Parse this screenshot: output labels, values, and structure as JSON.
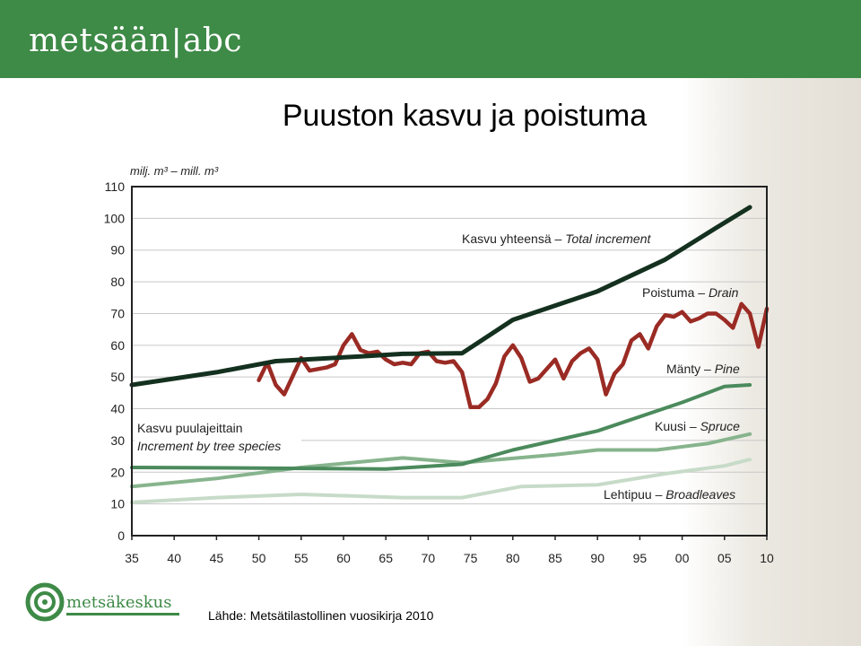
{
  "header": {
    "brand_left": "metsään",
    "brand_sep": "|",
    "brand_right": "abc"
  },
  "title": "Puuston kasvu ja poistuma",
  "source": "Lähde: Metsätilastollinen vuosikirja 2010",
  "footer_logo": {
    "text": "metsäkeskus"
  },
  "colors": {
    "header": "#3e8a47",
    "total_increment": "#14301f",
    "drain": "#9a2b24",
    "pine": "#4b8a5c",
    "spruce": "#87b48d",
    "broadleaves": "#c7dbc8",
    "species_label_box": "#ffffff"
  },
  "chart_data": {
    "type": "line",
    "ylabel": "milj. m³ – mill. m³",
    "ylim": [
      0,
      110
    ],
    "yticks": [
      0,
      10,
      20,
      30,
      40,
      50,
      60,
      70,
      80,
      90,
      100,
      110
    ],
    "xlim": [
      1935,
      2010
    ],
    "xticks": [
      1935,
      1940,
      1945,
      1950,
      1955,
      1960,
      1965,
      1970,
      1975,
      1980,
      1985,
      1990,
      1995,
      2000,
      2005,
      2010
    ],
    "xticklabels": [
      "35",
      "40",
      "45",
      "50",
      "55",
      "60",
      "65",
      "70",
      "75",
      "80",
      "85",
      "90",
      "95",
      "00",
      "05",
      "10"
    ],
    "grid": "horizontal",
    "annotations": [
      {
        "label": "Kasvu yhteensä – Total increment",
        "series": "total"
      },
      {
        "label": "Poistuma – Drain",
        "series": "drain"
      },
      {
        "label": "Mänty – Pine",
        "series": "pine"
      },
      {
        "label": "Kuusi – Spruce",
        "series": "spruce"
      },
      {
        "label": "Lehtipuu – Broadleaves",
        "series": "broadleaves"
      }
    ],
    "group_label": [
      "Kasvu puulajeittain",
      "Increment by tree species"
    ],
    "series": [
      {
        "id": "total",
        "name": "Kasvu yhteensä – Total increment",
        "x": [
          1935,
          1945,
          1952,
          1962,
          1967,
          1974,
          1980,
          1990,
          1998,
          2004,
          2008
        ],
        "y": [
          47.5,
          51.5,
          55,
          56.5,
          57.3,
          57.5,
          68,
          77,
          87,
          97,
          103.5
        ]
      },
      {
        "id": "drain",
        "name": "Poistuma – Drain",
        "x": [
          1950,
          1951,
          1952,
          1953,
          1955,
          1956,
          1958,
          1959,
          1960,
          1961,
          1962,
          1963,
          1964,
          1965,
          1966,
          1967,
          1968,
          1969,
          1970,
          1971,
          1972,
          1973,
          1974,
          1975,
          1976,
          1977,
          1978,
          1979,
          1980,
          1981,
          1982,
          1983,
          1984,
          1985,
          1986,
          1987,
          1988,
          1989,
          1990,
          1991,
          1992,
          1993,
          1994,
          1995,
          1996,
          1997,
          1998,
          1999,
          2000,
          2001,
          2002,
          2003,
          2004,
          2005,
          2006,
          2007,
          2008,
          2009,
          2010
        ],
        "y": [
          49,
          54.5,
          47.5,
          44.5,
          56,
          52,
          53,
          54,
          60,
          63.5,
          58.5,
          57.5,
          58,
          55.5,
          54,
          54.5,
          54,
          57.5,
          58,
          55,
          54.5,
          55,
          51.5,
          40.5,
          40.5,
          43,
          48,
          56.5,
          60,
          56,
          48.5,
          49.5,
          52.5,
          55.5,
          49.5,
          55,
          57.5,
          59,
          55.5,
          44.5,
          51,
          54,
          61.5,
          63.5,
          59,
          66,
          69.5,
          69,
          70.5,
          67.5,
          68.5,
          70,
          70,
          68,
          65.5,
          73,
          70,
          59.5,
          71.5
        ]
      },
      {
        "id": "pine",
        "name": "Mänty – Pine",
        "x": [
          1935,
          1950,
          1965,
          1974,
          1980,
          1990,
          2000,
          2005,
          2008
        ],
        "y": [
          21.5,
          21.3,
          21,
          22.5,
          27,
          33,
          42,
          47,
          47.5
        ]
      },
      {
        "id": "spruce",
        "name": "Kuusi – Spruce",
        "x": [
          1935,
          1945,
          1955,
          1967,
          1974,
          1985,
          1990,
          1997,
          2003,
          2008
        ],
        "y": [
          15.5,
          18,
          21.5,
          24.5,
          23,
          25.5,
          27,
          27,
          29,
          32
        ]
      },
      {
        "id": "broadleaves",
        "name": "Lehtipuu – Broadleaves",
        "x": [
          1935,
          1945,
          1955,
          1967,
          1974,
          1981,
          1990,
          1998,
          2005,
          2008
        ],
        "y": [
          10.5,
          12,
          13,
          12,
          12,
          15.5,
          16,
          19.5,
          22,
          24
        ]
      }
    ]
  }
}
